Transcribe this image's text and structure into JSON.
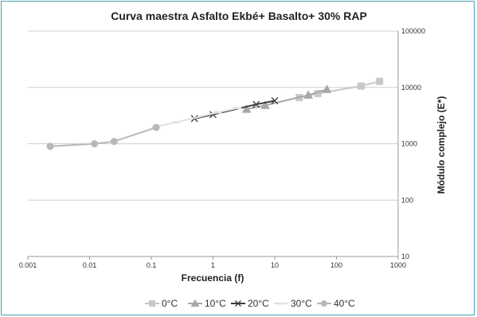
{
  "chart_data": {
    "type": "line",
    "title": "Curva maestra Asfalto Ekbé+ Basalto+ 30% RAP",
    "xlabel": "Frecuencia (f)",
    "ylabel": "Módulo complejo (E*)",
    "x_scale": "log",
    "y_scale": "log",
    "xlim": [
      0.001,
      1000
    ],
    "ylim": [
      10,
      100000
    ],
    "x_ticks": [
      "0.001",
      "0.01",
      "0.1",
      "1",
      "10",
      "100",
      "1000"
    ],
    "y_ticks": [
      "10",
      "100",
      "1000",
      "10000",
      "100000"
    ],
    "y_axis_side": "right",
    "grid": "horizontal",
    "legend_position": "bottom",
    "series": [
      {
        "name": "0°C",
        "marker": "square",
        "color": "#c8c8c8",
        "x": [
          25,
          50,
          250,
          500
        ],
        "y": [
          6600,
          7800,
          10600,
          12800
        ]
      },
      {
        "name": "10°C",
        "marker": "triangle",
        "color": "#a8a8a8",
        "x": [
          3.5,
          7,
          35,
          70
        ],
        "y": [
          4100,
          4800,
          7300,
          9200
        ]
      },
      {
        "name": "20°C",
        "marker": "x",
        "color": "#3a3a3a",
        "x": [
          0.5,
          1,
          5,
          10
        ],
        "y": [
          2800,
          3300,
          5000,
          5800
        ]
      },
      {
        "name": "30°C",
        "marker": "dash",
        "color": "#e2e2e2",
        "x": [
          0.12,
          0.25,
          1.2,
          2.5
        ],
        "y": [
          2000,
          2400,
          3600,
          4300
        ]
      },
      {
        "name": "40°C",
        "marker": "circle",
        "color": "#b8b8b8",
        "x": [
          0.0023,
          0.012,
          0.025,
          0.12
        ],
        "y": [
          900,
          1000,
          1100,
          1950
        ]
      }
    ]
  }
}
